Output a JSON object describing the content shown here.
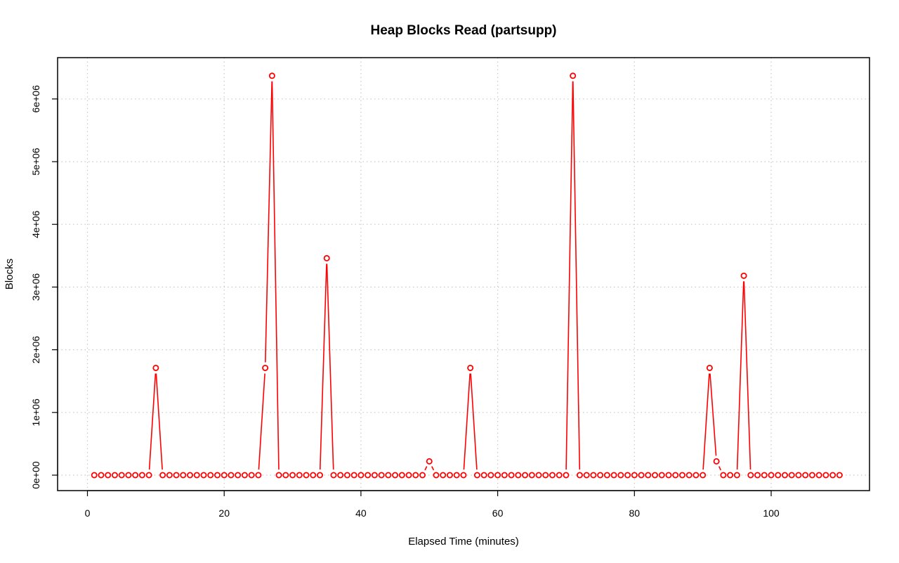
{
  "chart_data": {
    "type": "line",
    "title": "Heap Blocks Read (partsupp)",
    "xlabel": "Elapsed Time (minutes)",
    "ylabel": "Blocks",
    "xlim": [
      0,
      110
    ],
    "ylim": [
      0,
      6300000
    ],
    "x_ticks": [
      0,
      20,
      40,
      60,
      80,
      100
    ],
    "x_tick_labels": [
      "0",
      "20",
      "40",
      "60",
      "80",
      "100"
    ],
    "y_ticks": [
      0,
      1000000,
      2000000,
      3000000,
      4000000,
      5000000,
      6000000
    ],
    "y_tick_labels": [
      "0e+00",
      "1e+06",
      "2e+06",
      "3e+06",
      "4e+06",
      "5e+06",
      "6e+06"
    ],
    "grid": true,
    "series_color": "#ff0000",
    "series": [
      {
        "x": [
          1,
          2,
          3,
          4,
          5,
          6,
          7,
          8,
          9,
          10,
          11,
          12,
          13,
          14,
          15,
          16,
          17,
          18,
          19,
          20,
          21,
          22,
          23,
          24,
          25,
          26,
          27,
          28,
          29,
          30,
          31,
          32,
          33,
          34,
          35,
          36,
          37,
          38,
          39,
          40,
          41,
          42,
          43,
          44,
          45,
          46,
          47,
          48,
          49,
          50,
          51,
          52,
          53,
          54,
          55,
          56,
          57,
          58,
          59,
          60,
          61,
          62,
          63,
          64,
          65,
          66,
          67,
          68,
          69,
          70,
          71,
          72,
          73,
          74,
          75,
          76,
          77,
          78,
          79,
          80,
          81,
          82,
          83,
          84,
          85,
          86,
          87,
          88,
          89,
          90,
          91,
          92,
          93,
          94,
          95,
          96,
          97,
          98,
          99,
          100,
          101,
          102,
          103,
          104,
          105,
          106,
          107,
          108,
          109,
          110
        ],
        "values": [
          0,
          0,
          0,
          0,
          0,
          0,
          0,
          0,
          0,
          1710000,
          0,
          0,
          0,
          0,
          0,
          0,
          0,
          0,
          0,
          0,
          0,
          0,
          0,
          0,
          0,
          1710000,
          6370000,
          0,
          0,
          0,
          0,
          0,
          0,
          0,
          3460000,
          0,
          0,
          0,
          0,
          0,
          0,
          0,
          0,
          0,
          0,
          0,
          0,
          0,
          0,
          220000,
          0,
          0,
          0,
          0,
          0,
          1710000,
          0,
          0,
          0,
          0,
          0,
          0,
          0,
          0,
          0,
          0,
          0,
          0,
          0,
          0,
          6370000,
          0,
          0,
          0,
          0,
          0,
          0,
          0,
          0,
          0,
          0,
          0,
          0,
          0,
          0,
          0,
          0,
          0,
          0,
          0,
          1710000,
          220000,
          0,
          0,
          0,
          3180000,
          0,
          0,
          0,
          0,
          0,
          0,
          0,
          0,
          0,
          0,
          0,
          0,
          0,
          0
        ]
      }
    ]
  }
}
